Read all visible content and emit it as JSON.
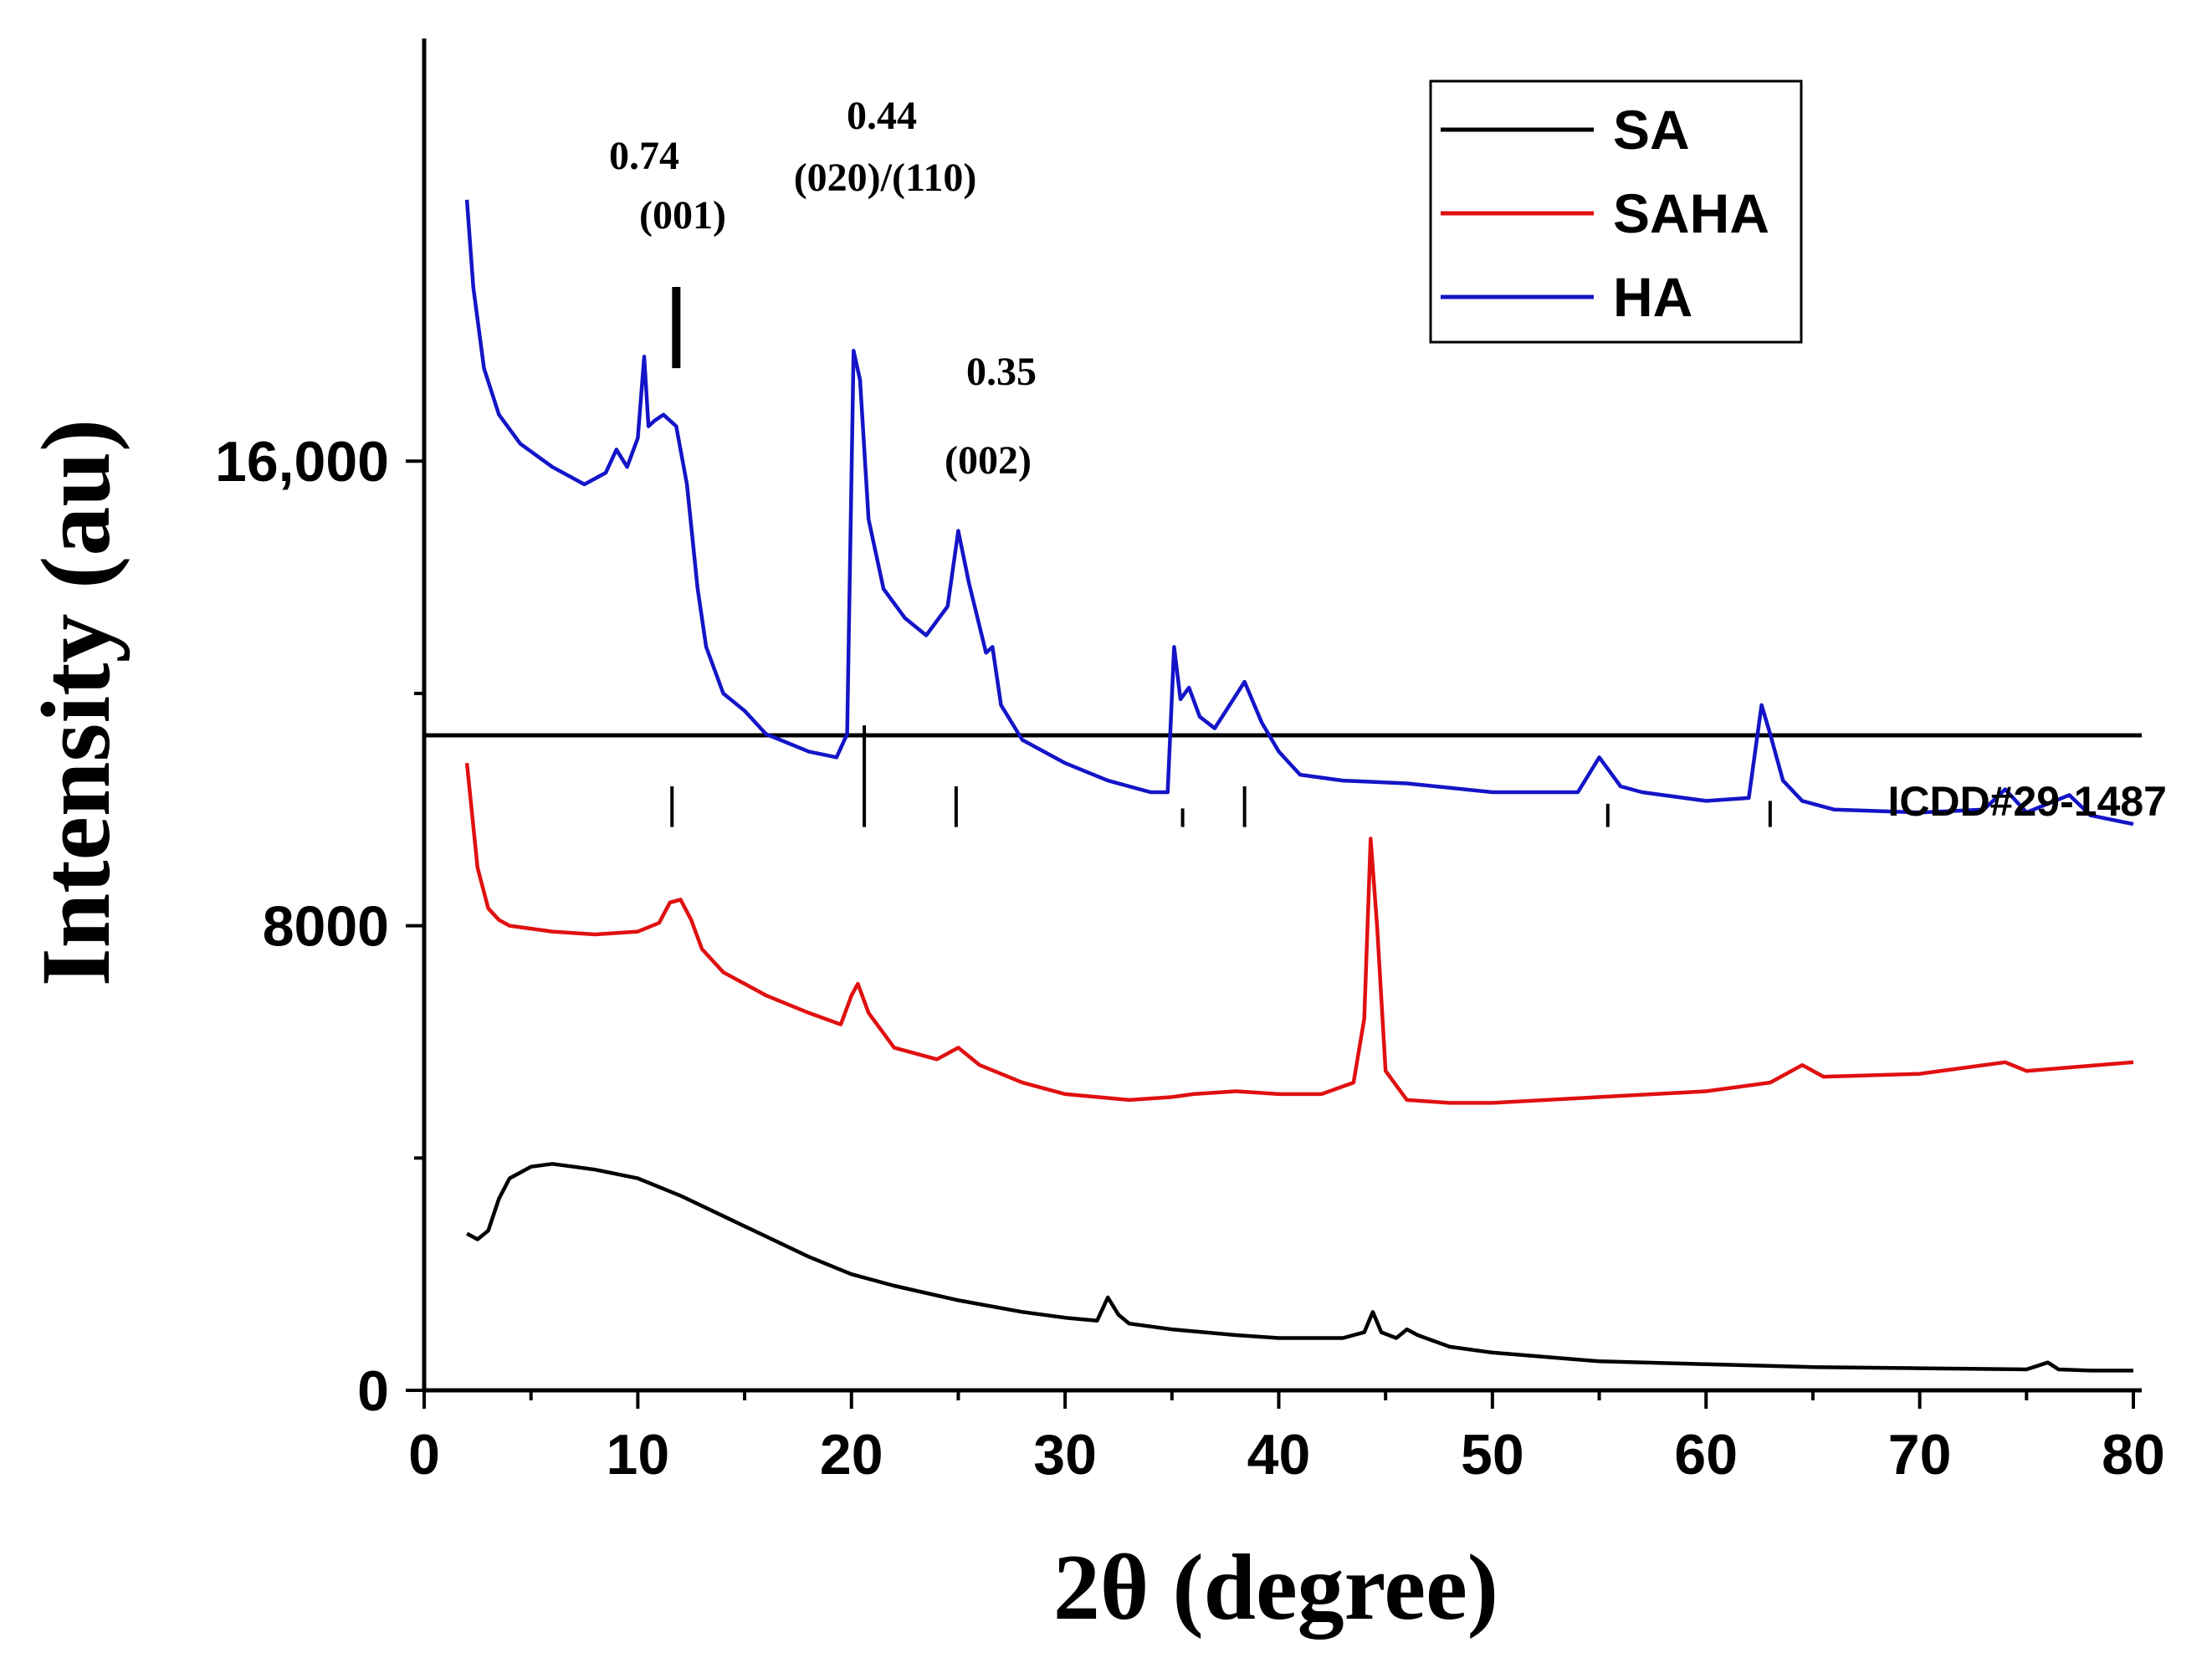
{
  "chart_data": {
    "type": "line",
    "xlabel": "2θ (degree)",
    "ylabel": "Intensity (au)",
    "xlim": [
      0,
      80
    ],
    "ylim": [
      0,
      22500
    ],
    "x_ticks": [
      0,
      10,
      20,
      30,
      40,
      50,
      60,
      70,
      80
    ],
    "y_ticks": [
      {
        "value": 0,
        "label": "0"
      },
      {
        "value": 8000,
        "label": "8000"
      },
      {
        "value": 16000,
        "label": "16,000"
      }
    ],
    "series": [
      {
        "name": "SA",
        "color": "#000000",
        "x": [
          2,
          2.5,
          3,
          3.5,
          4,
          5,
          6,
          7,
          8,
          10,
          12,
          14,
          16,
          18,
          20,
          22,
          25,
          28,
          30,
          31.5,
          32,
          32.5,
          33,
          35,
          38,
          40,
          43,
          44,
          44.4,
          44.8,
          45.5,
          46,
          46.5,
          48,
          50,
          55,
          60,
          65,
          70,
          75,
          76,
          76.5,
          78,
          80
        ],
        "values": [
          2700,
          2600,
          2750,
          3300,
          3650,
          3850,
          3900,
          3850,
          3800,
          3650,
          3350,
          3000,
          2650,
          2300,
          2000,
          1800,
          1550,
          1350,
          1250,
          1200,
          1600,
          1300,
          1150,
          1050,
          950,
          900,
          900,
          1000,
          1350,
          1000,
          900,
          1050,
          950,
          750,
          650,
          500,
          450,
          400,
          380,
          360,
          480,
          360,
          340,
          340
        ]
      },
      {
        "name": "SAHA",
        "color": "#e01010",
        "x": [
          2,
          2.5,
          3,
          3.5,
          4,
          5,
          6,
          8,
          10,
          11,
          11.5,
          12,
          12.5,
          13,
          14,
          16,
          18,
          19.5,
          20,
          20.3,
          20.8,
          22,
          24,
          25,
          26,
          28,
          30,
          33,
          35,
          36,
          38,
          40,
          42,
          43.5,
          44,
          44.3,
          44.6,
          45,
          46,
          48,
          50,
          55,
          60,
          63,
          64.5,
          65.5,
          70,
          74,
          75,
          80
        ],
        "values": [
          10800,
          9000,
          8300,
          8100,
          8000,
          7950,
          7900,
          7850,
          7900,
          8050,
          8400,
          8450,
          8100,
          7600,
          7200,
          6800,
          6500,
          6300,
          6800,
          7000,
          6500,
          5900,
          5700,
          5900,
          5600,
          5300,
          5100,
          5000,
          5050,
          5100,
          5150,
          5100,
          5100,
          5300,
          6400,
          9500,
          8000,
          5500,
          5000,
          4950,
          4950,
          5050,
          5150,
          5300,
          5600,
          5400,
          5450,
          5650,
          5500,
          5650
        ]
      },
      {
        "name": "HA",
        "color": "#1414c8",
        "x": [
          2,
          2.3,
          2.8,
          3.5,
          4.5,
          6,
          7.5,
          8.5,
          9,
          9.5,
          10,
          10.3,
          10.5,
          10.8,
          11.2,
          11.8,
          12.3,
          12.8,
          13.2,
          14,
          15,
          16,
          18,
          19.3,
          19.8,
          20.1,
          20.4,
          20.8,
          21.5,
          22.5,
          23.5,
          24.5,
          25,
          25.5,
          26.3,
          26.6,
          27,
          28,
          30,
          32,
          34,
          34.8,
          35.1,
          35.4,
          35.8,
          36.3,
          37,
          37.7,
          38.4,
          39.2,
          40,
          41,
          43,
          46,
          50,
          54,
          55,
          56,
          57,
          60,
          62,
          62.6,
          63,
          63.6,
          64.5,
          66,
          70,
          73,
          74,
          75,
          77,
          78,
          80
        ],
        "values": [
          20500,
          19000,
          17600,
          16800,
          16300,
          15900,
          15600,
          15800,
          16200,
          15900,
          16400,
          17800,
          16600,
          16700,
          16800,
          16600,
          15600,
          13800,
          12800,
          12000,
          11700,
          11300,
          11000,
          10900,
          11300,
          17900,
          17400,
          15000,
          13800,
          13300,
          13000,
          13500,
          14800,
          13900,
          12700,
          12800,
          11800,
          11200,
          10800,
          10500,
          10300,
          10300,
          12800,
          11900,
          12100,
          11600,
          11400,
          11800,
          12200,
          11500,
          11000,
          10600,
          10500,
          10450,
          10300,
          10300,
          10900,
          10400,
          10300,
          10150,
          10200,
          11800,
          11300,
          10500,
          10150,
          10000,
          9950,
          10000,
          10350,
          9950,
          10250,
          9900,
          9750
        ]
      }
    ],
    "reference": {
      "name": "ICDD#29-1487",
      "positions": [
        11.6,
        20.6,
        24.9,
        35.5,
        38.4,
        55.4,
        63.0
      ],
      "heights": [
        700,
        1750,
        700,
        320,
        700,
        400,
        450
      ]
    },
    "upper_axis_break_value": 9700,
    "annotations": [
      {
        "lines": [
          "0.74",
          "(001)"
        ],
        "x": 11.6
      },
      {
        "lines": [
          "0.44",
          "(020)/(110)"
        ],
        "x": 20.6
      },
      {
        "lines": [
          "0.35",
          "(002)"
        ],
        "x": 26.5
      }
    ],
    "marker": {
      "x": 11.8,
      "y_low": 17600,
      "y_high": 19000
    }
  }
}
